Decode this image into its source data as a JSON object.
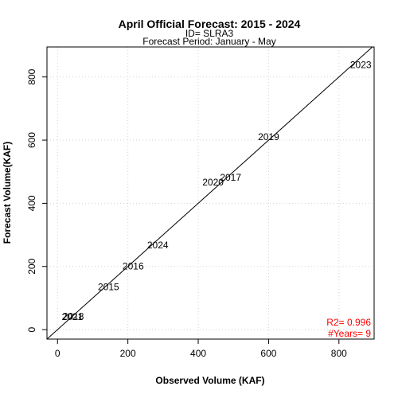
{
  "chart_data": {
    "type": "scatter",
    "title": "April Official Forecast: 2015 - 2024",
    "subtitle_lines": [
      "ID= SLRA3",
      "Forecast Period:  January - May"
    ],
    "xlabel": "Observed Volume (KAF)",
    "ylabel": "Forecast Volume(KAF)",
    "xlim": [
      -30,
      900
    ],
    "ylim": [
      -30,
      895
    ],
    "xticks": [
      0,
      200,
      400,
      600,
      800
    ],
    "yticks": [
      0,
      200,
      400,
      600,
      800
    ],
    "grid": true,
    "reference_line": "1:1",
    "points": [
      {
        "label": "2015",
        "x": 145,
        "y": 135
      },
      {
        "label": "2016",
        "x": 215,
        "y": 200
      },
      {
        "label": "2017",
        "x": 492,
        "y": 482
      },
      {
        "label": "2018",
        "x": 45,
        "y": 42
      },
      {
        "label": "2019",
        "x": 600,
        "y": 610
      },
      {
        "label": "2020",
        "x": 442,
        "y": 467
      },
      {
        "label": "2021",
        "x": 42,
        "y": 40
      },
      {
        "label": "2023",
        "x": 862,
        "y": 838
      },
      {
        "label": "2024",
        "x": 285,
        "y": 268
      }
    ],
    "stats": {
      "r2": "R2=  0.996",
      "years": "#Years=  9"
    },
    "colors": {
      "line": "#000000",
      "grid": "#d3d3d3",
      "stats": "#ff0000",
      "text": "#000000"
    }
  }
}
